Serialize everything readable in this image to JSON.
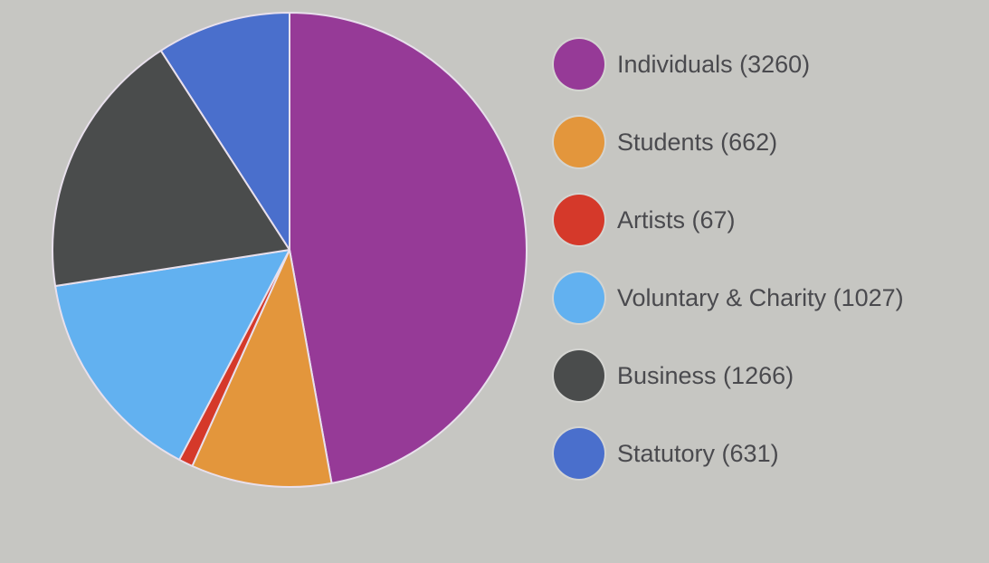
{
  "chart_data": {
    "type": "pie",
    "title": "",
    "slices": [
      {
        "label": "Individuals",
        "value": 3260,
        "color": "#963a97",
        "legend_text": "Individuals (3260)"
      },
      {
        "label": "Students",
        "value": 662,
        "color": "#e3963c",
        "legend_text": "Students (662)"
      },
      {
        "label": "Artists",
        "value": 67,
        "color": "#d5392a",
        "legend_text": "Artists (67)"
      },
      {
        "label": "Voluntary & Charity",
        "value": 1027,
        "color": "#62b1f0",
        "legend_text": "Voluntary & Charity (1027)"
      },
      {
        "label": "Business",
        "value": 1266,
        "color": "#4a4c4c",
        "legend_text": "Business (1266)"
      },
      {
        "label": "Statutory",
        "value": 631,
        "color": "#4a6fcc",
        "legend_text": "Statutory (631)"
      }
    ],
    "legend_position": "right"
  }
}
